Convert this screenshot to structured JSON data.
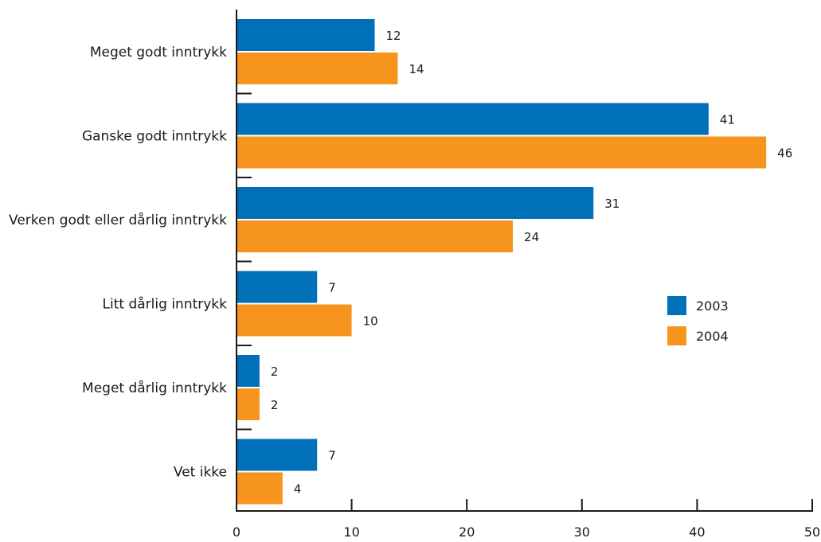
{
  "chart_data": {
    "type": "bar",
    "orientation": "horizontal",
    "categories": [
      "Meget godt inntrykk",
      "Ganske godt inntrykk",
      "Verken godt eller dårlig inntrykk",
      "Litt dårlig inntrykk",
      "Meget dårlig inntrykk",
      "Vet ikke"
    ],
    "series": [
      {
        "name": "2003",
        "values": [
          12,
          41,
          31,
          7,
          2,
          7
        ],
        "color": "#0070b8"
      },
      {
        "name": "2004",
        "values": [
          14,
          46,
          24,
          10,
          2,
          4
        ],
        "color": "#f7941d"
      }
    ],
    "xlim": [
      0,
      50
    ],
    "xticks": [
      0,
      10,
      20,
      30,
      40,
      50
    ],
    "grid": false,
    "legend_position": "right"
  }
}
